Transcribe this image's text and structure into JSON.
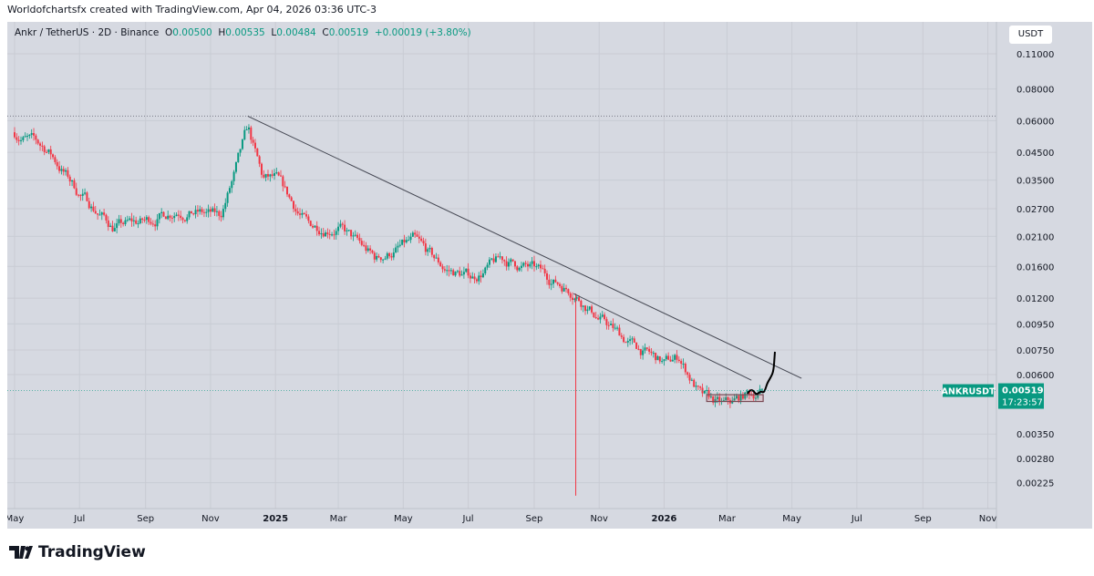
{
  "credit": "Worldofchartsfx created with TradingView.com, Apr 04, 2026 03:36 UTC-3",
  "legend": {
    "symbol": "Ankr / TetherUS · 2D · Binance",
    "o_label": "O",
    "o": "0.00500",
    "h_label": "H",
    "h": "0.00535",
    "l_label": "L",
    "l": "0.00484",
    "c_label": "C",
    "c": "0.00519",
    "change": "+0.00019 (+3.80%)"
  },
  "unit": "USDT",
  "brand": "TradingView",
  "colors": {
    "up": "#089981",
    "down": "#f23645",
    "background": "#d6d9e1",
    "line": "#434651"
  },
  "chart_data": {
    "type": "candlestick",
    "interval": "2D",
    "yscale": "log",
    "grid": true,
    "y_ticks": [
      "0.11000",
      "0.08000",
      "0.06000",
      "0.04500",
      "0.03500",
      "0.02700",
      "0.02100",
      "0.01600",
      "0.01200",
      "0.00950",
      "0.00750",
      "0.00600",
      "0.00350",
      "0.00280",
      "0.00225"
    ],
    "x_ticks": [
      "May",
      "Jul",
      "Sep",
      "Nov",
      "2025",
      "Mar",
      "May",
      "Jul",
      "Sep",
      "Nov",
      "2026",
      "Mar",
      "May",
      "Jul",
      "Sep",
      "Nov"
    ],
    "price_path": [
      [
        "2024-05-01",
        0.054
      ],
      [
        "2024-06-01",
        0.046
      ],
      [
        "2024-07-01",
        0.031
      ],
      [
        "2024-08-01",
        0.023
      ],
      [
        "2024-09-01",
        0.024
      ],
      [
        "2024-10-01",
        0.027
      ],
      [
        "2024-11-10",
        0.025
      ],
      [
        "2024-11-22",
        0.035
      ],
      [
        "2024-12-06",
        0.055
      ],
      [
        "2024-12-20",
        0.035
      ],
      [
        "2025-01-01",
        0.035
      ],
      [
        "2025-02-01",
        0.023
      ],
      [
        "2025-03-01",
        0.023
      ],
      [
        "2025-04-05",
        0.017
      ],
      [
        "2025-05-10",
        0.02
      ],
      [
        "2025-06-10",
        0.0155
      ],
      [
        "2025-07-05",
        0.0145
      ],
      [
        "2025-08-01",
        0.017
      ],
      [
        "2025-09-01",
        0.0155
      ],
      [
        "2025-10-08",
        0.0128
      ],
      [
        "2025-11-01",
        0.01
      ],
      [
        "2025-12-01",
        0.0079
      ],
      [
        "2026-01-01",
        0.0066
      ],
      [
        "2026-01-15",
        0.007
      ],
      [
        "2026-02-05",
        0.0049
      ],
      [
        "2026-02-25",
        0.0045
      ],
      [
        "2026-03-05",
        0.0046
      ],
      [
        "2026-03-20",
        0.005
      ],
      [
        "2026-04-04",
        0.00519
      ]
    ],
    "crash_wick": {
      "date": "2025-10-10",
      "low": 0.002
    },
    "ath_line": 0.0625,
    "trendlines": [
      {
        "from": [
          "2024-12-06",
          0.0625
        ],
        "to": [
          "2026-05-10",
          0.0058
        ]
      },
      {
        "from": [
          "2025-10-08",
          0.0125
        ],
        "to": [
          "2026-03-24",
          0.0057
        ]
      }
    ],
    "box": {
      "from": "2026-02-10",
      "to": "2026-04-04",
      "low": 0.0047,
      "high": 0.005
    },
    "last": {
      "label": "ANKRUSDT",
      "price": "0.00519",
      "countdown": "17:23:57"
    }
  }
}
